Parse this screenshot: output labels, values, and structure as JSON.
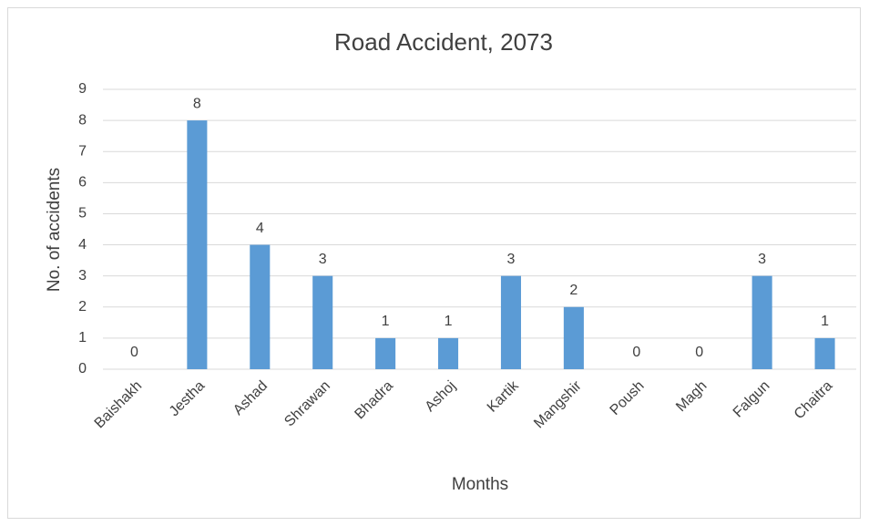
{
  "chart_data": {
    "type": "bar",
    "title": "Road Accident, 2073",
    "x_label": "Months",
    "y_label": "No. of accidents",
    "categories": [
      "Baishakh",
      "Jestha",
      "Ashad",
      "Shrawan",
      "Bhadra",
      "Ashoj",
      "Kartik",
      "Mangshir",
      "Poush",
      "Magh",
      "Falgun",
      "Chaitra"
    ],
    "values": [
      0,
      8,
      4,
      3,
      1,
      1,
      3,
      2,
      0,
      0,
      3,
      1
    ],
    "color": "#5b9bd5",
    "ylim": [
      0,
      9
    ],
    "yticks": [
      0,
      1,
      2,
      3,
      4,
      5,
      6,
      7,
      8,
      9
    ],
    "grid": true
  }
}
